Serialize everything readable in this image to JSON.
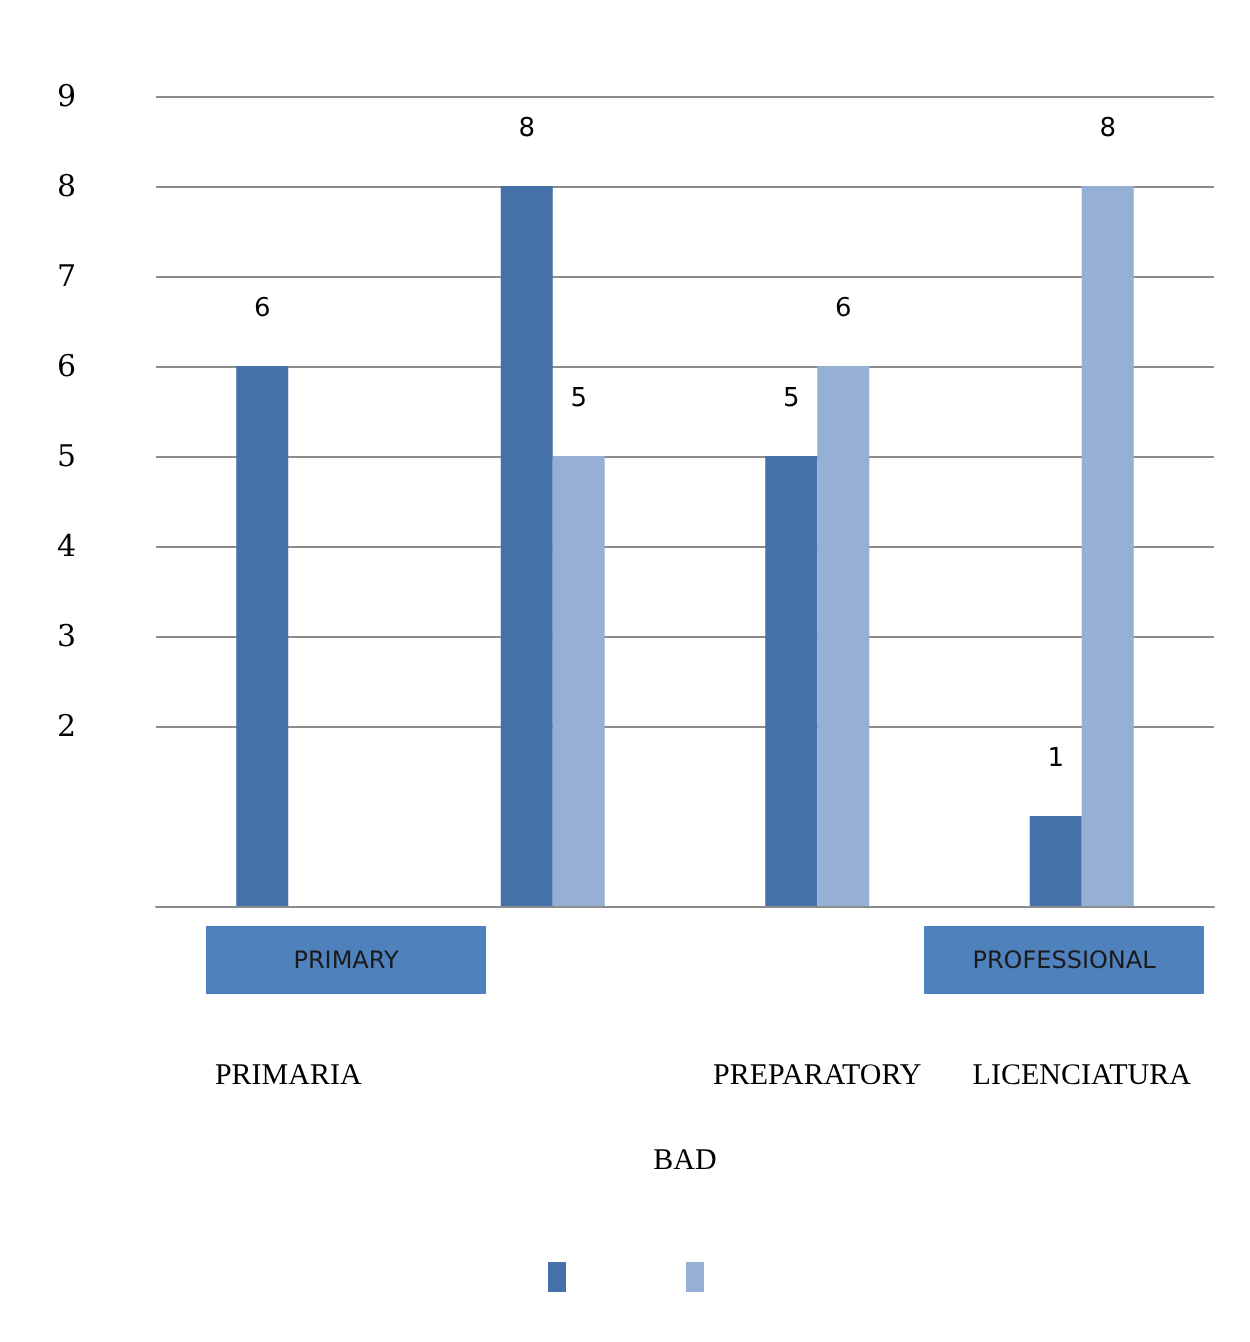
{
  "chart_data": {
    "type": "bar",
    "categories": [
      "PRIMARIA",
      null,
      "PREPARATORY",
      "LICENCIATURA"
    ],
    "series": [
      {
        "color": "#4472a8",
        "values": [
          6,
          8,
          5,
          1
        ]
      },
      {
        "color": "#95b0d4",
        "values": [
          null,
          5,
          6,
          8
        ]
      }
    ],
    "xlabel": "BAD",
    "annotations": [
      "PRIMARY",
      "PROFESSIONAL"
    ],
    "ylim": [
      0,
      9
    ],
    "yticks": [
      2,
      3,
      4,
      5,
      6,
      7,
      8,
      9
    ],
    "grid": "y",
    "data_labels": true
  }
}
